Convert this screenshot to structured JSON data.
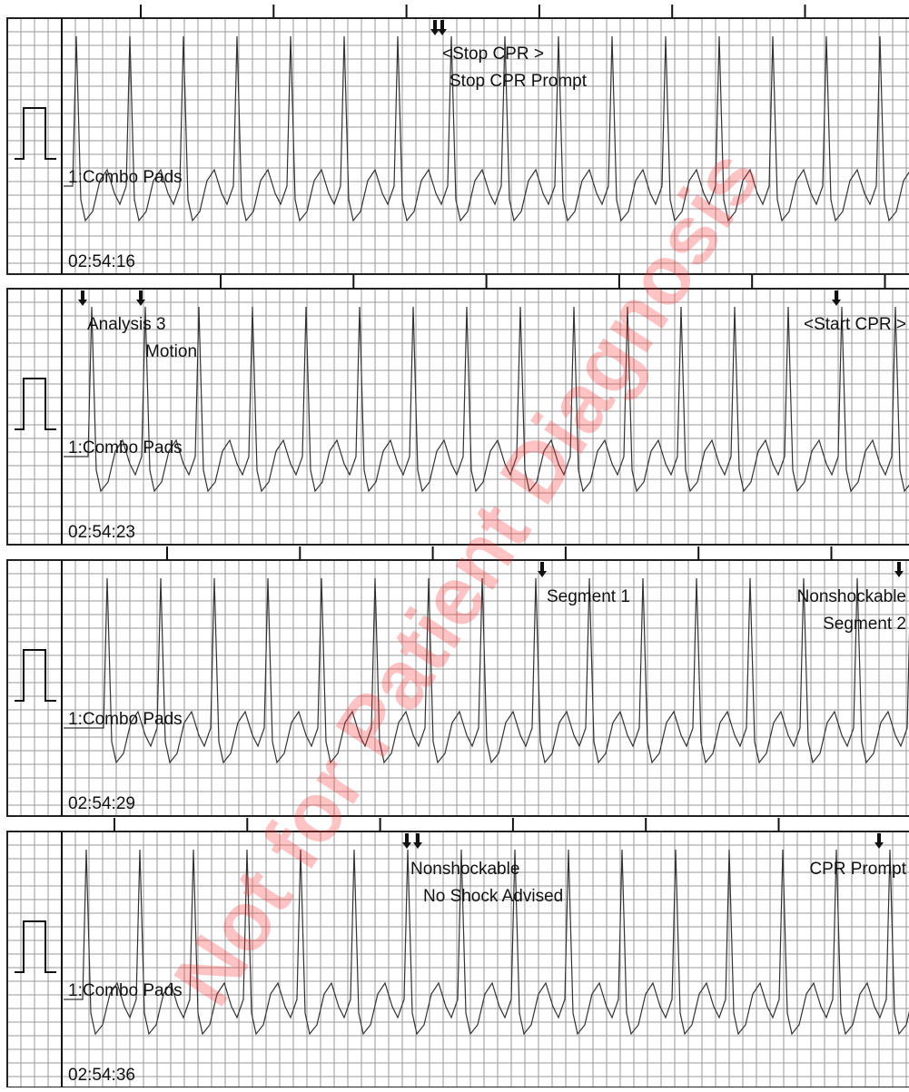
{
  "strips": [
    {
      "time": "02:54:16",
      "lead": "1:Combo Pads",
      "annotations": [
        "<Stop CPR >",
        "Stop CPR Prompt"
      ]
    },
    {
      "time": "02:54:23",
      "lead": "1:Combo Pads",
      "annotations": [
        "Analysis 3",
        "Motion",
        "<Start CPR >"
      ]
    },
    {
      "time": "02:54:29",
      "lead": "1:Combo Pads",
      "annotations": [
        "Segment 1",
        "Nonshockable",
        "Segment 2"
      ]
    },
    {
      "time": "02:54:36",
      "lead": "1:Combo Pads",
      "annotations": [
        "Nonshockable",
        "No Shock Advised",
        "CPR Prompt"
      ]
    }
  ],
  "watermark": "Not for Patient Diagnosis"
}
